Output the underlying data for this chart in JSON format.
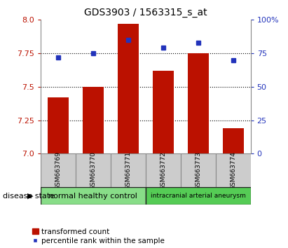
{
  "title": "GDS3903 / 1563315_s_at",
  "samples": [
    "GSM663769",
    "GSM663770",
    "GSM663771",
    "GSM663772",
    "GSM663773",
    "GSM663774"
  ],
  "bar_values": [
    7.42,
    7.5,
    7.97,
    7.62,
    7.75,
    7.19
  ],
  "percentile_values": [
    72,
    75,
    85,
    79,
    83,
    70
  ],
  "bar_color": "#bb1100",
  "percentile_color": "#2233bb",
  "ylim_left": [
    7.0,
    8.0
  ],
  "ylim_right": [
    0,
    100
  ],
  "yticks_left": [
    7.0,
    7.25,
    7.5,
    7.75,
    8.0
  ],
  "yticks_right": [
    0,
    25,
    50,
    75,
    100
  ],
  "hgrid_values": [
    7.25,
    7.5,
    7.75
  ],
  "group1_label": "normal healthy control",
  "group2_label": "intracranial arterial aneurysm",
  "group1_indices": [
    0,
    1,
    2
  ],
  "group2_indices": [
    3,
    4,
    5
  ],
  "group1_color": "#88dd88",
  "group2_color": "#55cc55",
  "disease_state_label": "disease state",
  "legend_bar_label": "transformed count",
  "legend_dot_label": "percentile rank within the sample",
  "bar_width": 0.6,
  "xlabel_bg": "#cccccc",
  "title_fontsize": 10,
  "tick_fontsize": 8,
  "label_fontsize": 8
}
